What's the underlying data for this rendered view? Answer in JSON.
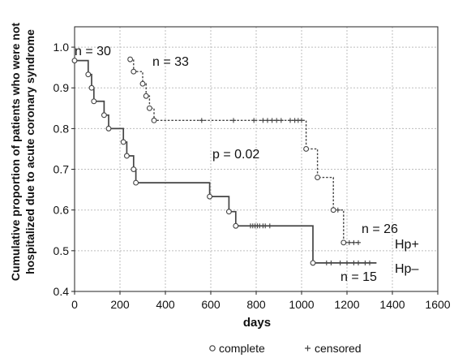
{
  "chart_data": {
    "type": "line",
    "subtype": "kaplan-meier step",
    "ylabel_line1": "Cumulative proportion of patients who were not",
    "ylabel_line2": "hospitalized due to acute coronary syndrome",
    "xlabel": "days",
    "xlim": [
      0,
      1600
    ],
    "ylim": [
      0.4,
      1.05
    ],
    "xticks": [
      0,
      200,
      400,
      600,
      800,
      1000,
      1200,
      1400,
      1600
    ],
    "yticks": [
      "0.4",
      "0.5",
      "0.6",
      "0.7",
      "0.8",
      "0.9",
      "1.0"
    ],
    "grid": true,
    "pvalue_label": "p = 0.02",
    "legend": {
      "complete": "complete",
      "censored": "censored",
      "position": "bottom"
    },
    "series": [
      {
        "name": "Hp–",
        "n_start": "n = 30",
        "n_end": "n = 15",
        "style": "solid",
        "steps": [
          [
            0,
            0.967
          ],
          [
            60,
            0.933
          ],
          [
            75,
            0.9
          ],
          [
            85,
            0.867
          ],
          [
            130,
            0.833
          ],
          [
            150,
            0.8
          ],
          [
            215,
            0.767
          ],
          [
            230,
            0.733
          ],
          [
            260,
            0.7
          ],
          [
            270,
            0.667
          ],
          [
            595,
            0.633
          ],
          [
            680,
            0.596
          ],
          [
            710,
            0.561
          ],
          [
            1050,
            0.47
          ],
          [
            1330,
            0.47
          ]
        ],
        "events": [
          [
            0,
            0.967
          ],
          [
            60,
            0.933
          ],
          [
            75,
            0.9
          ],
          [
            85,
            0.867
          ],
          [
            130,
            0.833
          ],
          [
            150,
            0.8
          ],
          [
            215,
            0.767
          ],
          [
            230,
            0.733
          ],
          [
            260,
            0.7
          ],
          [
            270,
            0.667
          ],
          [
            595,
            0.633
          ],
          [
            680,
            0.596
          ],
          [
            710,
            0.561
          ],
          [
            1050,
            0.47
          ]
        ],
        "censored": [
          [
            775,
            0.561
          ],
          [
            785,
            0.561
          ],
          [
            795,
            0.561
          ],
          [
            805,
            0.561
          ],
          [
            815,
            0.561
          ],
          [
            830,
            0.561
          ],
          [
            840,
            0.561
          ],
          [
            860,
            0.561
          ],
          [
            1110,
            0.47
          ],
          [
            1130,
            0.47
          ],
          [
            1170,
            0.47
          ],
          [
            1200,
            0.47
          ],
          [
            1230,
            0.47
          ],
          [
            1250,
            0.47
          ],
          [
            1280,
            0.47
          ],
          [
            1300,
            0.47
          ]
        ]
      },
      {
        "name": "Hp+",
        "n_start": "n = 33",
        "n_end": "n = 26",
        "style": "dashed",
        "steps": [
          [
            245,
            0.97
          ],
          [
            260,
            0.94
          ],
          [
            300,
            0.91
          ],
          [
            315,
            0.88
          ],
          [
            330,
            0.85
          ],
          [
            350,
            0.82
          ],
          [
            1020,
            0.75
          ],
          [
            1070,
            0.68
          ],
          [
            1140,
            0.6
          ],
          [
            1185,
            0.52
          ],
          [
            1250,
            0.52
          ]
        ],
        "events": [
          [
            245,
            0.97
          ],
          [
            260,
            0.94
          ],
          [
            300,
            0.91
          ],
          [
            315,
            0.88
          ],
          [
            330,
            0.85
          ],
          [
            350,
            0.82
          ],
          [
            1020,
            0.75
          ],
          [
            1070,
            0.68
          ],
          [
            1140,
            0.6
          ],
          [
            1185,
            0.52
          ]
        ],
        "censored": [
          [
            560,
            0.82
          ],
          [
            700,
            0.82
          ],
          [
            790,
            0.82
          ],
          [
            830,
            0.82
          ],
          [
            850,
            0.82
          ],
          [
            870,
            0.82
          ],
          [
            890,
            0.82
          ],
          [
            910,
            0.82
          ],
          [
            950,
            0.82
          ],
          [
            970,
            0.82
          ],
          [
            985,
            0.82
          ],
          [
            1000,
            0.82
          ],
          [
            1160,
            0.6
          ],
          [
            1210,
            0.52
          ],
          [
            1230,
            0.52
          ],
          [
            1250,
            0.52
          ]
        ]
      }
    ]
  }
}
